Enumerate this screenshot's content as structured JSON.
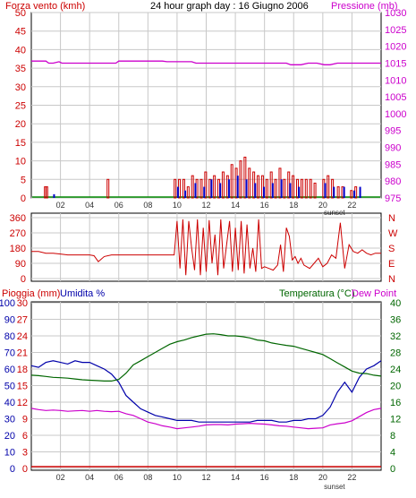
{
  "colors": {
    "wind": "#cc0000",
    "gust": "#0000cc",
    "wind_calm": "#008800",
    "pressure": "#cc00cc",
    "direction": "#cc0000",
    "rain": "#cc0000",
    "humidity": "#0000aa",
    "temperature": "#006600",
    "dewpoint": "#cc00cc",
    "grid": "#c8c8c8"
  },
  "chart_data": [
    {
      "type": "bar",
      "panel": "wind-pressure",
      "title": "24 hour graph day : 16 Giugno 2006",
      "left_axis_label": "Forza vento (kmh)",
      "right_axis_label": "Pressione (mb)",
      "ylim": [
        0,
        50
      ],
      "y_ticks": [
        "0",
        "5",
        "10",
        "15",
        "20",
        "25",
        "30",
        "35",
        "40",
        "45",
        "50"
      ],
      "y2lim": [
        975,
        1030
      ],
      "y2_ticks": [
        "975",
        "980",
        "985",
        "990",
        "995",
        "1000",
        "1005",
        "1010",
        "1015",
        "1020",
        "1025",
        "1030"
      ],
      "x_ticks": [
        "02",
        "04",
        "06",
        "08",
        "10",
        "12",
        "14",
        "16",
        "18",
        "20",
        "22"
      ],
      "sunset_label": "sunset",
      "wind_speed_bars": [
        [
          0.9,
          3
        ],
        [
          1.0,
          3
        ],
        [
          5.2,
          5
        ],
        [
          9.8,
          5
        ],
        [
          10.1,
          5
        ],
        [
          10.4,
          5
        ],
        [
          10.7,
          3
        ],
        [
          11.0,
          6
        ],
        [
          11.3,
          5
        ],
        [
          11.6,
          5
        ],
        [
          11.9,
          7
        ],
        [
          12.2,
          5
        ],
        [
          12.5,
          6
        ],
        [
          12.8,
          5
        ],
        [
          13.1,
          7
        ],
        [
          13.4,
          6
        ],
        [
          13.7,
          9
        ],
        [
          14.0,
          8
        ],
        [
          14.3,
          10
        ],
        [
          14.6,
          11
        ],
        [
          14.9,
          8
        ],
        [
          15.2,
          7
        ],
        [
          15.5,
          6
        ],
        [
          15.8,
          6
        ],
        [
          16.1,
          5
        ],
        [
          16.4,
          7
        ],
        [
          16.7,
          5
        ],
        [
          17.0,
          8
        ],
        [
          17.3,
          5
        ],
        [
          17.6,
          7
        ],
        [
          17.9,
          6
        ],
        [
          18.2,
          5
        ],
        [
          18.5,
          5
        ],
        [
          18.8,
          5
        ],
        [
          19.1,
          5
        ],
        [
          19.4,
          4
        ],
        [
          20.0,
          5
        ],
        [
          20.3,
          6
        ],
        [
          20.6,
          5
        ],
        [
          21.0,
          3
        ],
        [
          21.3,
          3
        ],
        [
          21.9,
          2
        ],
        [
          22.2,
          3
        ]
      ],
      "wind_gust_bars": [
        [
          1.5,
          1
        ],
        [
          10.0,
          3
        ],
        [
          10.5,
          2
        ],
        [
          11.2,
          4
        ],
        [
          11.8,
          3
        ],
        [
          12.3,
          5
        ],
        [
          12.9,
          4
        ],
        [
          13.5,
          5
        ],
        [
          14.1,
          6
        ],
        [
          14.7,
          5
        ],
        [
          15.3,
          4
        ],
        [
          15.9,
          3
        ],
        [
          16.5,
          4
        ],
        [
          17.1,
          5
        ],
        [
          17.7,
          4
        ],
        [
          18.3,
          3
        ],
        [
          20.1,
          4
        ],
        [
          20.7,
          3
        ],
        [
          21.4,
          3
        ],
        [
          22.1,
          2
        ],
        [
          22.5,
          3
        ]
      ],
      "pressure_x": [
        0,
        1.0,
        1.2,
        1.5,
        1.9,
        2.1,
        5.8,
        6.0,
        9.0,
        9.3,
        11.0,
        11.3,
        17.5,
        17.8,
        18.5,
        19.0,
        19.6,
        20.1,
        20.5,
        21.0,
        24
      ],
      "pressure_y": [
        1015.6,
        1015.6,
        1015.0,
        1015.0,
        1015.4,
        1015.0,
        1015.0,
        1015.6,
        1015.6,
        1015.4,
        1015.4,
        1015.0,
        1015.0,
        1014.5,
        1014.5,
        1015.0,
        1015.0,
        1014.5,
        1014.5,
        1015.0,
        1015.0
      ]
    },
    {
      "type": "line",
      "panel": "wind-direction",
      "ylim": [
        0,
        360
      ],
      "y_ticks": [
        "0",
        "90",
        "180",
        "270",
        "360"
      ],
      "right_labels": [
        "N",
        "W",
        "S",
        "E",
        "N"
      ],
      "x": [
        0,
        0.5,
        1,
        1.5,
        2,
        2.5,
        3,
        3.5,
        4,
        4.3,
        4.6,
        5,
        5.5,
        6,
        6.5,
        7,
        7.5,
        8,
        8.5,
        9,
        9.5,
        9.8,
        10.0,
        10.2,
        10.4,
        10.6,
        10.8,
        11.0,
        11.2,
        11.4,
        11.6,
        11.8,
        12.0,
        12.2,
        12.4,
        12.6,
        12.8,
        13.0,
        13.2,
        13.4,
        13.6,
        13.8,
        14.0,
        14.2,
        14.4,
        14.6,
        14.8,
        15.0,
        15.2,
        15.4,
        15.6,
        15.8,
        16.0,
        16.3,
        16.6,
        16.9,
        17.1,
        17.3,
        17.5,
        17.7,
        17.9,
        18.1,
        18.3,
        18.5,
        18.7,
        18.9,
        19.1,
        19.4,
        19.7,
        20.0,
        20.3,
        20.6,
        20.9,
        21.2,
        21.5,
        21.8,
        22.1,
        22.4,
        22.7,
        23.0,
        23.3,
        23.6,
        24
      ],
      "y": [
        160,
        160,
        150,
        150,
        145,
        140,
        140,
        140,
        140,
        135,
        100,
        130,
        140,
        140,
        140,
        140,
        140,
        140,
        140,
        140,
        140,
        140,
        340,
        60,
        350,
        20,
        340,
        180,
        50,
        350,
        20,
        300,
        40,
        345,
        90,
        260,
        20,
        350,
        60,
        200,
        340,
        40,
        300,
        50,
        340,
        30,
        320,
        60,
        180,
        40,
        350,
        60,
        70,
        60,
        50,
        80,
        200,
        40,
        300,
        250,
        110,
        130,
        90,
        120,
        80,
        70,
        60,
        90,
        120,
        70,
        90,
        140,
        120,
        330,
        60,
        200,
        160,
        150,
        170,
        150,
        140,
        150,
        150
      ]
    },
    {
      "type": "line",
      "panel": "temp-humidity",
      "left_axis_label_1": "Pioggia (mm)",
      "left_axis_label_2": "Umidita %",
      "right_axis_label_1": "Temperatura (°C)",
      "right_axis_label_2": "Dew Point",
      "rain_ticks": [
        "0",
        "3",
        "6",
        "9",
        "12",
        "15",
        "18",
        "21",
        "24",
        "27",
        "30"
      ],
      "humidity_ticks": [
        "0",
        "10",
        "20",
        "30",
        "40",
        "50",
        "60",
        "70",
        "80",
        "90",
        "100"
      ],
      "temp_ticks": [
        "0",
        "4",
        "8",
        "12",
        "16",
        "20",
        "24",
        "28",
        "32",
        "36",
        "40"
      ],
      "ylim": [
        0,
        100
      ],
      "y2lim": [
        0,
        40
      ],
      "x_ticks": [
        "02",
        "04",
        "06",
        "08",
        "10",
        "12",
        "14",
        "16",
        "18",
        "20",
        "22"
      ],
      "sunset_label": "sunset",
      "series": [
        {
          "name": "Umidita %",
          "x": [
            0,
            0.5,
            1,
            1.5,
            2,
            2.5,
            3,
            3.5,
            4,
            4.5,
            5,
            5.5,
            6,
            6.5,
            7,
            7.5,
            8,
            8.5,
            9,
            9.5,
            10,
            10.5,
            11,
            11.5,
            12,
            12.5,
            13,
            13.5,
            14,
            14.5,
            15,
            15.5,
            16,
            16.5,
            17,
            17.5,
            18,
            18.5,
            19,
            19.5,
            20,
            20.5,
            21,
            21.5,
            22,
            22.5,
            23,
            23.5,
            24
          ],
          "y": [
            62,
            61,
            64,
            65,
            64,
            63,
            65,
            64,
            64,
            62,
            60,
            57,
            52,
            44,
            40,
            36,
            34,
            32,
            31,
            30,
            29,
            29,
            29,
            28,
            28,
            28,
            28,
            28,
            28,
            28,
            28,
            29,
            29,
            29,
            28,
            28,
            29,
            29,
            30,
            30,
            32,
            37,
            46,
            52,
            46,
            55,
            60,
            62,
            65
          ]
        },
        {
          "name": "Temperatura (°C)",
          "x": [
            0,
            0.5,
            1,
            1.5,
            2,
            2.5,
            3,
            3.5,
            4,
            4.5,
            5,
            5.5,
            6,
            6.5,
            7,
            7.5,
            8,
            8.5,
            9,
            9.5,
            10,
            10.5,
            11,
            11.5,
            12,
            12.5,
            13,
            13.5,
            14,
            14.5,
            15,
            15.5,
            16,
            16.5,
            17,
            17.5,
            18,
            18.5,
            19,
            19.5,
            20,
            20.5,
            21,
            21.5,
            22,
            22.5,
            23,
            23.5,
            24
          ],
          "y": [
            22.5,
            22.4,
            22.2,
            22.0,
            21.9,
            21.8,
            21.6,
            21.4,
            21.3,
            21.2,
            21.1,
            21.1,
            21.5,
            23.0,
            25.0,
            26.0,
            27.0,
            28.0,
            29.0,
            30.0,
            30.6,
            31.0,
            31.6,
            32.0,
            32.4,
            32.5,
            32.3,
            32.0,
            32.0,
            31.8,
            31.5,
            31.0,
            30.8,
            30.3,
            30.0,
            29.7,
            29.5,
            29.0,
            28.5,
            28.0,
            27.5,
            26.5,
            25.5,
            24.5,
            23.5,
            23.0,
            22.9,
            22.5,
            22.3
          ]
        },
        {
          "name": "Dew Point",
          "x": [
            0,
            0.5,
            1,
            1.5,
            2,
            2.5,
            3,
            3.5,
            4,
            4.5,
            5,
            5.5,
            6,
            6.5,
            7,
            7.5,
            8,
            8.5,
            9,
            9.5,
            10,
            10.5,
            11,
            11.5,
            12,
            12.5,
            13,
            13.5,
            14,
            14.5,
            15,
            15.5,
            16,
            16.5,
            17,
            17.5,
            18,
            18.5,
            19,
            19.5,
            20,
            20.5,
            21,
            21.5,
            22,
            22.5,
            23,
            23.5,
            24
          ],
          "y": [
            14.5,
            14.2,
            14.0,
            14.1,
            14.0,
            13.8,
            13.9,
            14.0,
            13.8,
            14.0,
            13.8,
            13.7,
            13.8,
            13.2,
            12.8,
            12.0,
            11.2,
            10.8,
            10.3,
            10.0,
            9.6,
            9.8,
            10.0,
            10.2,
            10.5,
            10.6,
            10.6,
            10.5,
            10.7,
            10.8,
            10.9,
            10.8,
            10.7,
            10.5,
            10.3,
            10.2,
            10.0,
            9.8,
            9.6,
            9.7,
            9.8,
            10.5,
            10.8,
            11.0,
            11.5,
            12.5,
            13.5,
            14.2,
            14.5
          ]
        },
        {
          "name": "Pioggia (mm)",
          "x": [
            0,
            24
          ],
          "y": [
            0,
            0
          ]
        }
      ]
    }
  ]
}
